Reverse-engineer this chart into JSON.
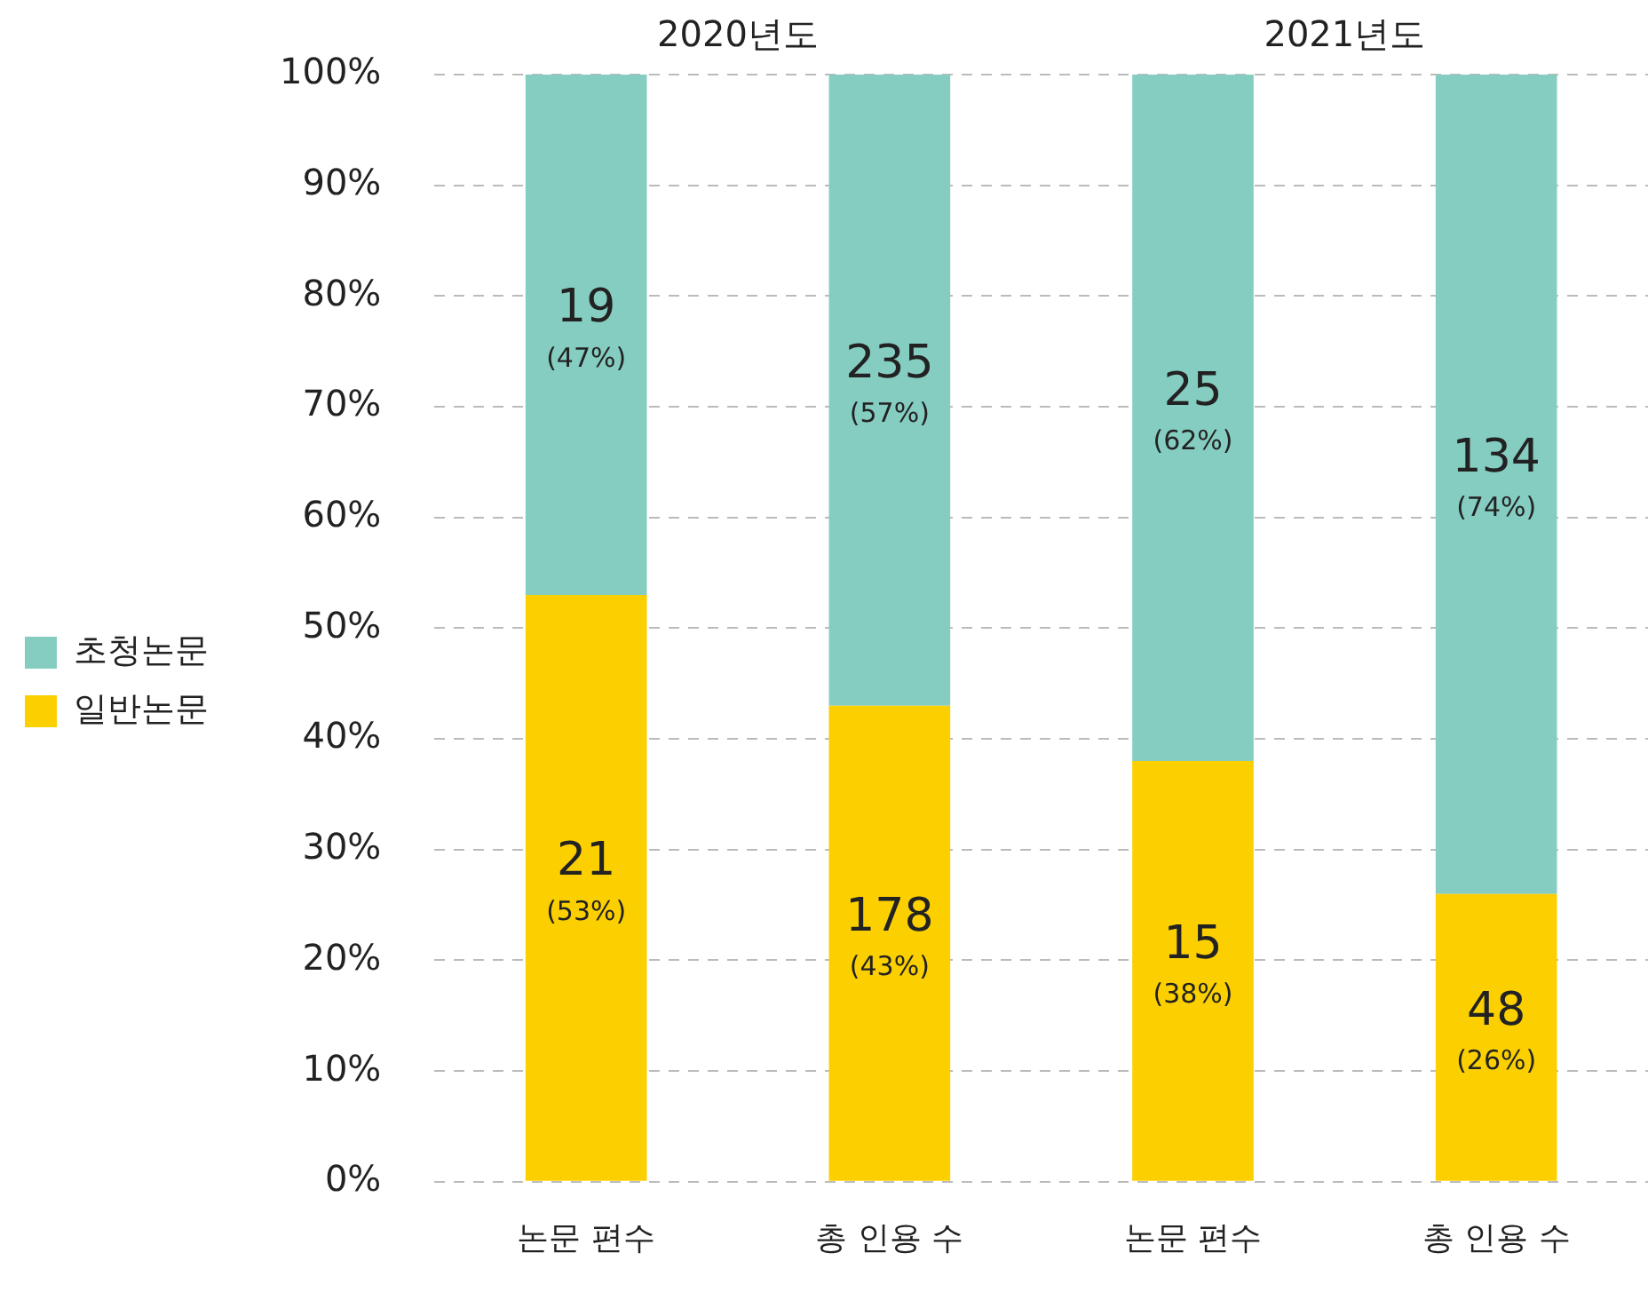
{
  "chart_data": {
    "type": "bar",
    "stacked": true,
    "categories": [
      "논문 편수",
      "총 인용 수",
      "논문 편수",
      "총 인용 수"
    ],
    "series": [
      {
        "name": "일반논문",
        "color": "#fcd000",
        "values": [
          53,
          43,
          38,
          26
        ],
        "value_labels": [
          "21\n(53%)",
          "178\n(43%)",
          "15\n(38%)",
          "48\n(26%)"
        ]
      },
      {
        "name": "초청논문",
        "color": "#86cdc1",
        "values": [
          47,
          57,
          62,
          74
        ],
        "value_labels": [
          "19\n(47%)",
          "235\n(57%)",
          "25\n(62%)",
          "134\n(74%)"
        ]
      }
    ],
    "ylim": [
      0,
      100
    ],
    "yticks": [
      {
        "value": 0,
        "label": "0%"
      },
      {
        "value": 10,
        "label": "10%"
      },
      {
        "value": 20,
        "label": "20%"
      },
      {
        "value": 30,
        "label": "30%"
      },
      {
        "value": 40,
        "label": "40%"
      },
      {
        "value": 50,
        "label": "50%"
      },
      {
        "value": 60,
        "label": "60%"
      },
      {
        "value": 70,
        "label": "70%"
      },
      {
        "value": 80,
        "label": "80%"
      },
      {
        "value": 90,
        "label": "90%"
      },
      {
        "value": 100,
        "label": "100%"
      }
    ],
    "grid": "y",
    "legend": "left",
    "annotations": [
      "2020년도",
      "2021년도"
    ]
  }
}
